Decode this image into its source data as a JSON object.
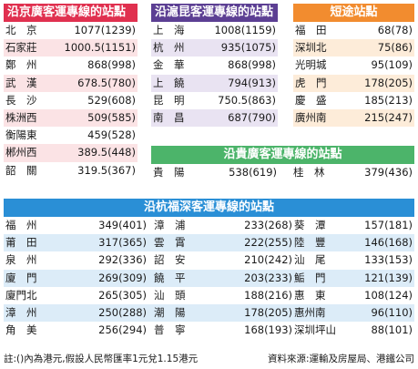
{
  "beijing": {
    "title": "沿京廣客運專線的站點",
    "color": "#e0304f",
    "rows": [
      {
        "name": "北　京",
        "value": "1077(1239)"
      },
      {
        "name": "石家莊",
        "value": "1000.5(1151)"
      },
      {
        "name": "鄭　州",
        "value": "868(998)"
      },
      {
        "name": "武　漢",
        "value": "678.5(780)"
      },
      {
        "name": "長　沙",
        "value": "529(608)"
      },
      {
        "name": "株洲西",
        "value": "509(585)"
      },
      {
        "name": "衡陽東",
        "value": "459(528)"
      },
      {
        "name": "郴州西",
        "value": "389.5(448)"
      },
      {
        "name": "韶　關",
        "value": "319.5(367)"
      }
    ]
  },
  "shanghai": {
    "title": "沿滬昆客運專線的站點",
    "color": "#5c3f93",
    "rows": [
      {
        "name": "上　海",
        "value": "1008(1159)"
      },
      {
        "name": "杭　州",
        "value": "935(1075)"
      },
      {
        "name": "金　華",
        "value": "868(998)"
      },
      {
        "name": "上　饒",
        "value": "794(913)"
      },
      {
        "name": "昆　明",
        "value": "750.5(863)"
      },
      {
        "name": "南　昌",
        "value": "687(790)"
      }
    ]
  },
  "short": {
    "title": "短途站點",
    "color": "#f28c2f",
    "rows": [
      {
        "name": "福　田",
        "value": "68(78)"
      },
      {
        "name": "深圳北",
        "value": "75(86)"
      },
      {
        "name": "光明城",
        "value": "95(109)"
      },
      {
        "name": "虎　門",
        "value": "178(205)"
      },
      {
        "name": "慶　盛",
        "value": "185(213)"
      },
      {
        "name": "廣州南",
        "value": "215(247)"
      }
    ]
  },
  "guiguang": {
    "title": "沿貴廣客運專線的站點",
    "color": "#4cb46a",
    "rows": [
      {
        "name": "貴　陽",
        "value": "538(619)",
        "name2": "桂　林",
        "value2": "379(436)"
      }
    ]
  },
  "hangfu": {
    "title": "沿杭福深客運專線的站點",
    "color": "#2a8fd6",
    "rows": [
      {
        "c1n": "福　州",
        "c1v": "349(401)",
        "c2n": "漳　浦",
        "c2v": "233(268)",
        "c3n": "葵　潭",
        "c3v": "157(181)"
      },
      {
        "c1n": "莆　田",
        "c1v": "317(365)",
        "c2n": "雲　霄",
        "c2v": "222(255)",
        "c3n": "陸　豐",
        "c3v": "146(168)"
      },
      {
        "c1n": "泉　州",
        "c1v": "292(336)",
        "c2n": "詔　安",
        "c2v": "210(242)",
        "c3n": "汕　尾",
        "c3v": "133(153)"
      },
      {
        "c1n": "廈　門",
        "c1v": "269(309)",
        "c2n": "饒　平",
        "c2v": "203(233)",
        "c3n": "鮜　門",
        "c3v": "121(139)"
      },
      {
        "c1n": "廈門北",
        "c1v": "265(305)",
        "c2n": "汕　頭",
        "c2v": "188(216)",
        "c3n": "惠　東",
        "c3v": "108(124)"
      },
      {
        "c1n": "漳　州",
        "c1v": "250(288)",
        "c2n": "潮　陽",
        "c2v": "178(205)",
        "c3n": "惠州南",
        "c3v": "96(110)"
      },
      {
        "c1n": "角　美",
        "c1v": "256(294)",
        "c2n": "普　寧",
        "c2v": "168(193)",
        "c3n": "深圳坪山",
        "c3v": "88(101)"
      }
    ]
  },
  "footer": {
    "note": "註:()內為港元,假設人民幣匯率1元兌1.15港元",
    "source": "資料來源:運輸及房屋局、港鐵公司"
  }
}
